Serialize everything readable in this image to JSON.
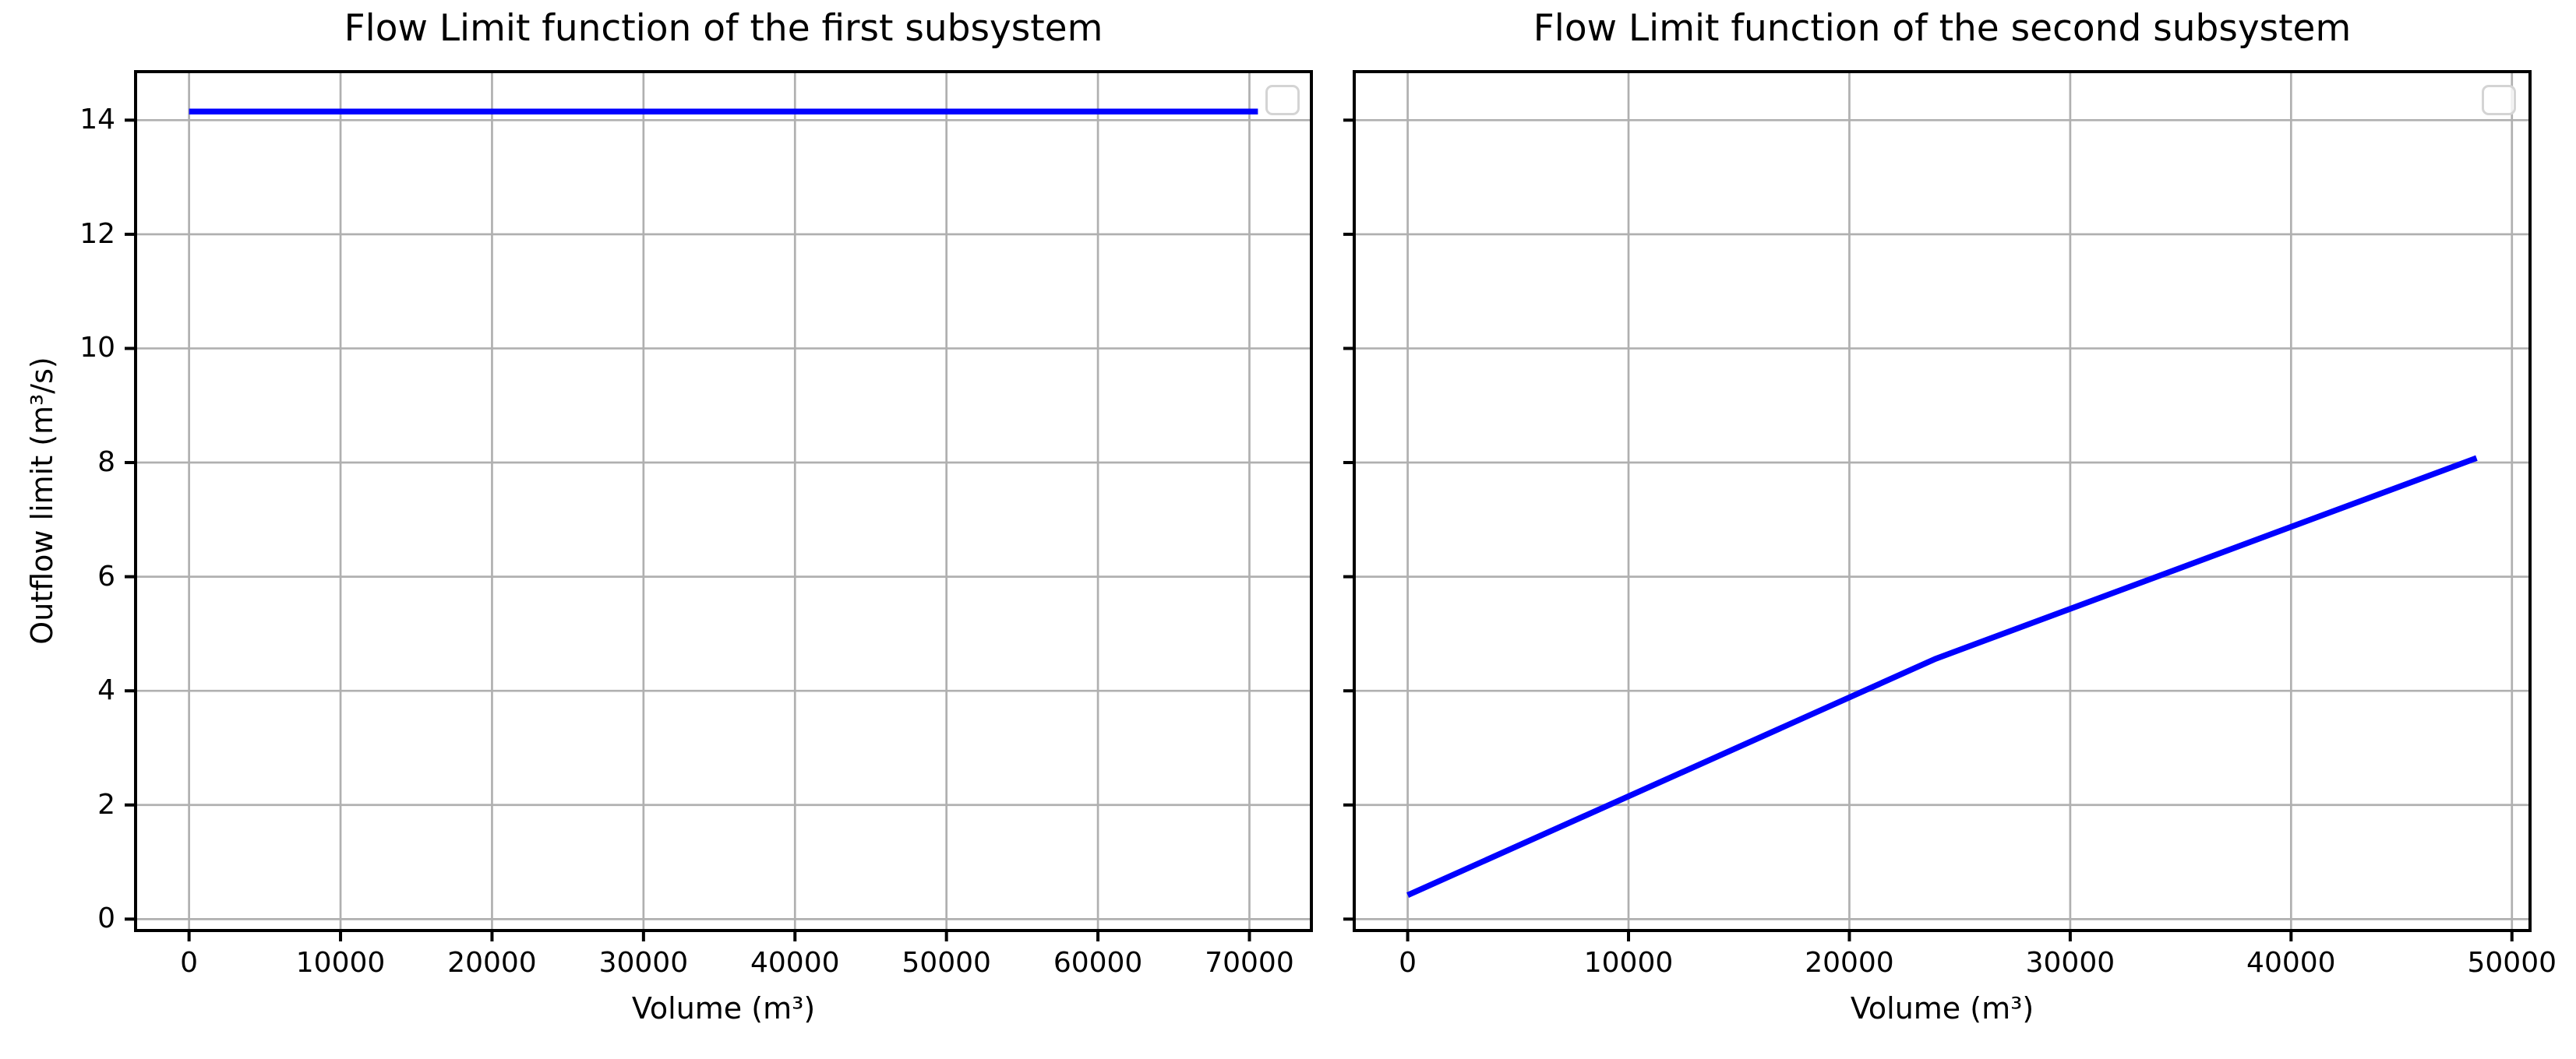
{
  "figure": {
    "background": "#ffffff",
    "line_color": "#0000ff",
    "grid_color": "#b0b0b0",
    "spine_color": "#000000",
    "tick_color": "#000000",
    "text_color": "#000000",
    "legend_border_color": "#d4d4d4"
  },
  "chart_data": [
    {
      "type": "line",
      "title": "Flow Limit function of the first subsystem",
      "xlabel": "Volume (m³)",
      "ylabel": "Outflow limit (m³/s)",
      "x": [
        0,
        70560
      ],
      "y": [
        14.15,
        14.15
      ],
      "xticks": [
        0,
        10000,
        20000,
        30000,
        40000,
        50000,
        60000,
        70000
      ],
      "yticks": [
        0,
        2,
        4,
        6,
        8,
        10,
        12,
        14
      ],
      "xlim": [
        -3530,
        74090
      ],
      "ylim": [
        -0.2,
        14.85
      ],
      "grid": true,
      "show_ytick_labels": true,
      "legend": {
        "visible": true,
        "position": "upper right",
        "entries": []
      }
    },
    {
      "type": "line",
      "title": "Flow Limit function of the second subsystem",
      "xlabel": "Volume (m³)",
      "ylabel": "",
      "x": [
        0,
        23900,
        48400
      ],
      "y": [
        0.42,
        4.56,
        8.08
      ],
      "xticks": [
        0,
        10000,
        20000,
        30000,
        40000,
        50000
      ],
      "yticks": [
        0,
        2,
        4,
        6,
        8,
        10,
        12,
        14
      ],
      "xlim": [
        -2420,
        50820
      ],
      "ylim": [
        -0.2,
        14.85
      ],
      "grid": true,
      "show_ytick_labels": false,
      "legend": {
        "visible": true,
        "position": "upper right",
        "entries": []
      }
    }
  ]
}
